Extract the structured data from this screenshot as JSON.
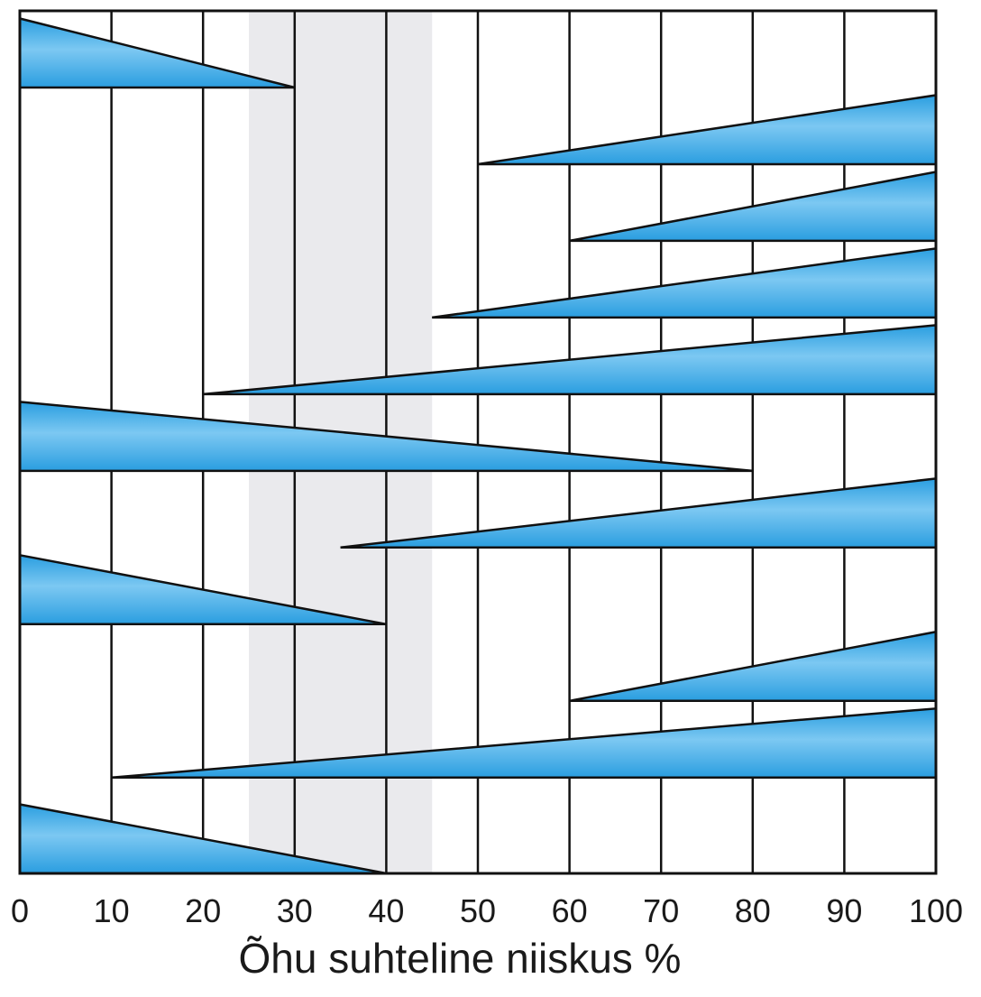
{
  "chart_data": {
    "type": "bar",
    "title": "",
    "xlabel": "Õhu suhteline niiskus %",
    "ylabel": "",
    "xlim": [
      0,
      100
    ],
    "xticks": [
      0,
      10,
      20,
      30,
      40,
      50,
      60,
      70,
      80,
      90,
      100
    ],
    "xtick_labels": [
      "0",
      "10",
      "20",
      "30",
      "40",
      "50",
      "60",
      "70",
      "80",
      "90",
      "100"
    ],
    "grid": "vertical",
    "highlight_range": [
      25,
      45
    ],
    "colors": {
      "fill": "#2a9ee0",
      "fill_light": "#7cc8f2",
      "outline": "#111111",
      "highlight": "#d8d8de",
      "background": "#ffffff"
    },
    "series": [
      {
        "start": 0,
        "end": 30,
        "max_at": "start"
      },
      {
        "start": 50,
        "end": 100,
        "max_at": "end"
      },
      {
        "start": 60,
        "end": 100,
        "max_at": "end"
      },
      {
        "start": 45,
        "end": 100,
        "max_at": "end"
      },
      {
        "start": 20,
        "end": 100,
        "max_at": "end"
      },
      {
        "start": 0,
        "end": 80,
        "max_at": "start"
      },
      {
        "start": 35,
        "end": 100,
        "max_at": "end"
      },
      {
        "start": 0,
        "end": 40,
        "max_at": "start"
      },
      {
        "start": 60,
        "end": 100,
        "max_at": "end"
      },
      {
        "start": 10,
        "end": 100,
        "max_at": "end"
      },
      {
        "start": 0,
        "end": 40,
        "max_at": "start"
      }
    ]
  }
}
